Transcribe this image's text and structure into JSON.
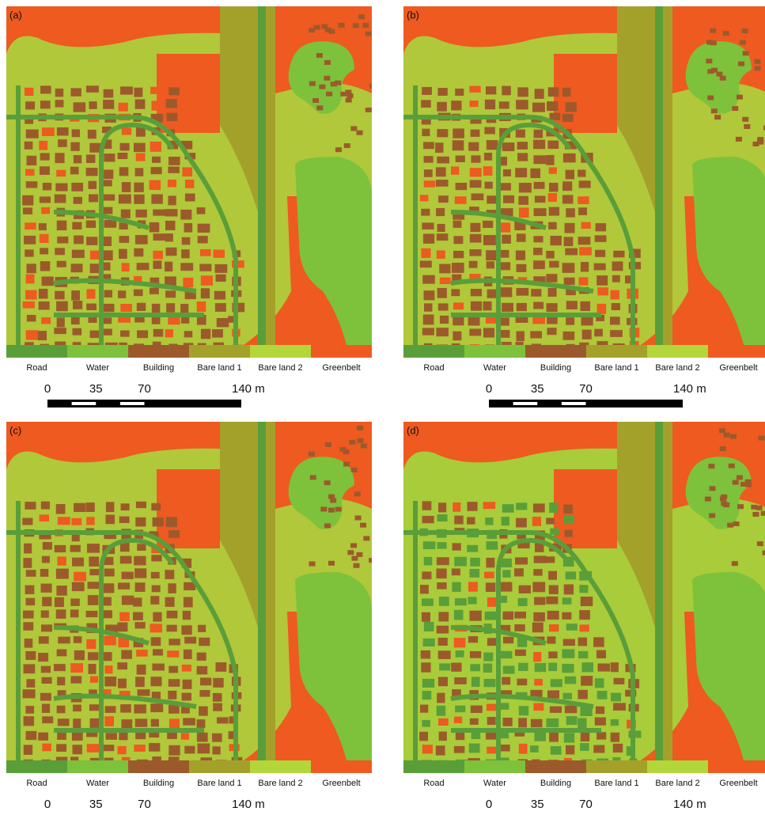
{
  "panels": [
    {
      "label": "(a)"
    },
    {
      "label": "(b)"
    },
    {
      "label": "(c)"
    },
    {
      "label": "(d)"
    }
  ],
  "legend": [
    {
      "name": "Road",
      "color": "#5a9e3a"
    },
    {
      "name": "Water",
      "color": "#7dc23a"
    },
    {
      "name": "Building",
      "color": "#9c5a2c"
    },
    {
      "name": "Bare land 1",
      "color": "#a4a12a"
    },
    {
      "name": "Bare land 2",
      "color": "#b3d63a"
    },
    {
      "name": "Greenbelt",
      "color": "#ee5a20"
    }
  ],
  "scale_bar": {
    "labels": [
      "0",
      "35",
      "70",
      "140 m"
    ]
  }
}
